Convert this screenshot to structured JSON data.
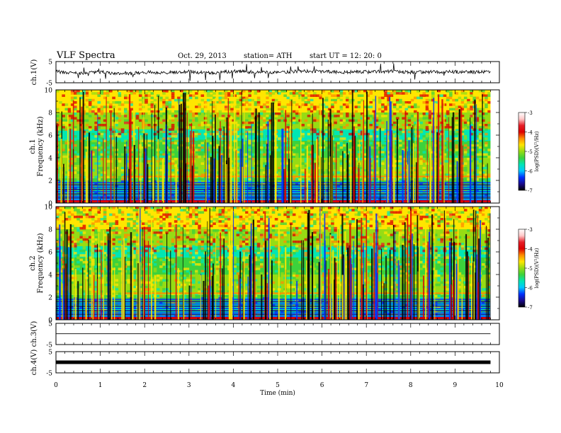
{
  "header": {
    "title": "VLF  Spectra",
    "date": "Oct. 29, 2013",
    "station": "station= ATH",
    "start": "start  UT  =    12: 20: 0"
  },
  "colors": {
    "colormap": [
      "#000000",
      "#1a0a8c",
      "#0030ff",
      "#00c8ff",
      "#00e6b4",
      "#3cd23c",
      "#96dc14",
      "#ffe600",
      "#ff8c00",
      "#dc0000",
      "#e61e28",
      "#ffc8c8",
      "#ffffff"
    ],
    "trace": "#000000",
    "frame": "#000000"
  },
  "chart_data": [
    {
      "type": "line",
      "panel": "ch1-waveform",
      "ylabel": "ch.1(V)",
      "ylim": [
        -5,
        5
      ],
      "yticks": [
        "5",
        "-5"
      ],
      "x": [
        0,
        0.5,
        1,
        1.5,
        2,
        2.5,
        3,
        3.5,
        4,
        4.5,
        5,
        5.5,
        6,
        6.5,
        7,
        7.5,
        8,
        8.5,
        9,
        9.5,
        9.8
      ],
      "y": [
        0.3,
        -0.6,
        0.1,
        -1.0,
        0.0,
        -0.2,
        0.2,
        -0.5,
        0.5,
        0.0,
        0.0,
        0.4,
        0.3,
        0.0,
        0.1,
        0.4,
        0.0,
        0.1,
        0.2,
        0.0,
        0.2
      ]
    },
    {
      "type": "heatmap",
      "panel": "ch1-spectrogram",
      "ylabel": "ch.1\nFrequency (kHz)",
      "ylim": [
        0,
        10
      ],
      "yticks": [
        "0",
        "2",
        "4",
        "6",
        "8",
        "10"
      ],
      "colorbar_label": "log(PSD)(V²/Hz)",
      "colorbar_ticks": [
        "-3",
        "-4",
        "-5",
        "-6",
        "-7"
      ],
      "zlim": [
        -7,
        -3
      ]
    },
    {
      "type": "heatmap",
      "panel": "ch2-spectrogram",
      "ylabel": "ch.2\nFrequency (kHz)",
      "ylim": [
        0,
        10
      ],
      "yticks": [
        "0",
        "2",
        "4",
        "6",
        "8",
        "10"
      ],
      "colorbar_label": "log(PSD)(V²/Hz)",
      "colorbar_ticks": [
        "-3",
        "-4",
        "-5",
        "-6",
        "-7"
      ],
      "zlim": [
        -7,
        -3
      ]
    },
    {
      "type": "line",
      "panel": "ch3-waveform",
      "ylabel": "ch.3(V)",
      "ylim": [
        -5,
        5
      ],
      "yticks": [
        "5",
        "-5"
      ],
      "x": [
        0,
        9.8
      ],
      "y": [
        0.1,
        0.1
      ]
    },
    {
      "type": "line",
      "panel": "ch4-waveform",
      "ylabel": "ch.4(V)",
      "ylim": [
        -5,
        5
      ],
      "yticks": [
        "5",
        "-5"
      ],
      "x": [
        0,
        9.8
      ],
      "y": [
        0.0,
        0.0
      ]
    }
  ],
  "xaxis": {
    "label": "Time  (min)",
    "range": [
      0,
      10
    ],
    "ticks": [
      "0",
      "1",
      "2",
      "3",
      "4",
      "5",
      "6",
      "7",
      "8",
      "9",
      "10"
    ]
  }
}
